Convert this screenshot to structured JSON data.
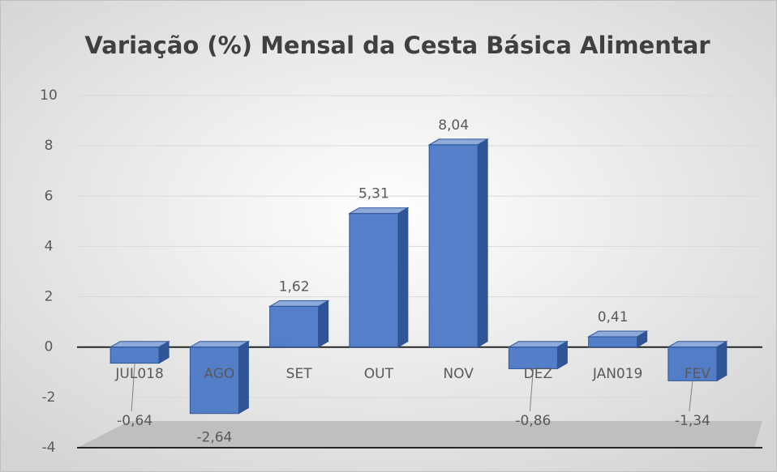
{
  "chart_data": {
    "type": "bar",
    "title": "Variação (%) Mensal da Cesta Básica Alimentar",
    "categories": [
      "JUL018",
      "AGO",
      "SET",
      "OUT",
      "NOV",
      "DEZ",
      "JAN019",
      "FEV"
    ],
    "values": [
      -0.64,
      -2.64,
      1.62,
      5.31,
      8.04,
      -0.86,
      0.41,
      -1.34
    ],
    "value_labels": [
      "-0,64",
      "-2,64",
      "1,62",
      "5,31",
      "8,04",
      "-0,86",
      "0,41",
      "-1,34"
    ],
    "color": "#4472c4",
    "ylim": [
      -4,
      10
    ],
    "yticks": [
      -4,
      -2,
      0,
      2,
      4,
      6,
      8,
      10
    ],
    "grid": true
  }
}
